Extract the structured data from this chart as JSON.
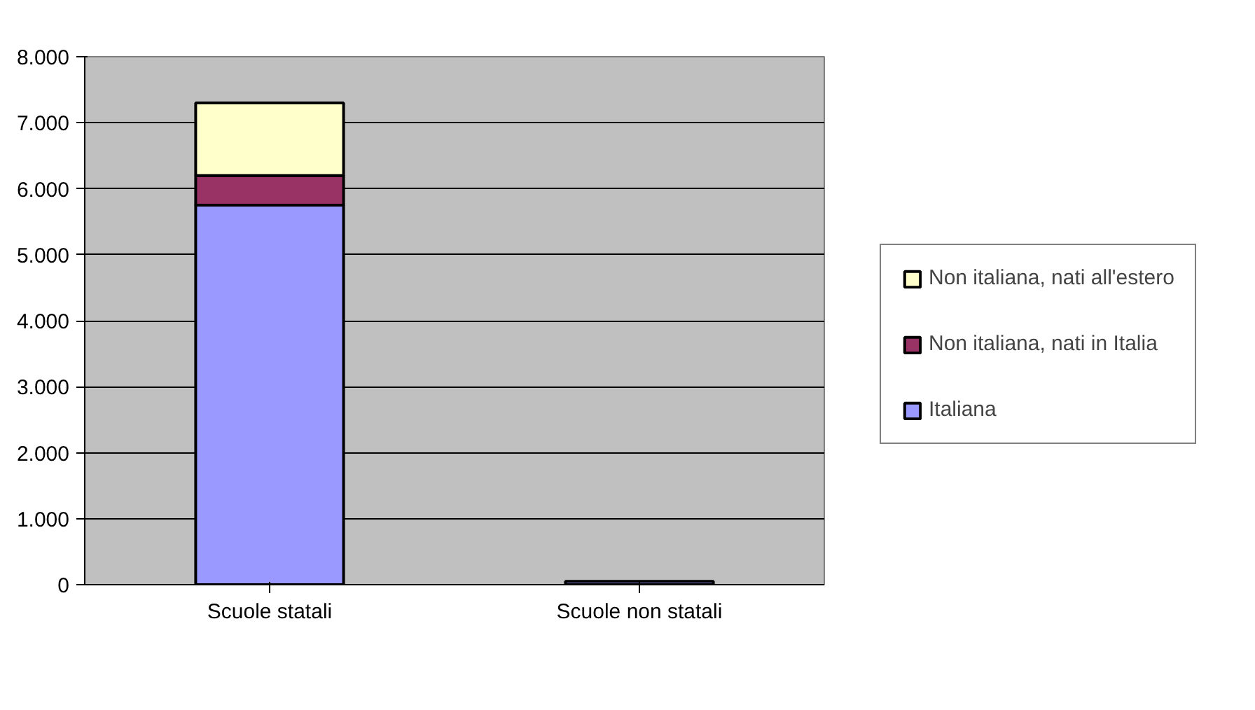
{
  "chart_data": {
    "type": "bar",
    "stacked": true,
    "categories": [
      "Scuole statali",
      "Scuole non statali"
    ],
    "series": [
      {
        "name": "Italiana",
        "color": "#9999ff",
        "values": [
          5750,
          50
        ]
      },
      {
        "name": "Non italiana, nati in Italia",
        "color": "#993366",
        "values": [
          450,
          null
        ]
      },
      {
        "name": "Non italiana, nati all'estero",
        "color": "#ffffcc",
        "values": [
          1100,
          null
        ]
      }
    ],
    "ylim": [
      0,
      8000
    ],
    "yticks": [
      {
        "value": 0,
        "label": "0"
      },
      {
        "value": 1000,
        "label": "1.000"
      },
      {
        "value": 2000,
        "label": "2.000"
      },
      {
        "value": 3000,
        "label": "3.000"
      },
      {
        "value": 4000,
        "label": "4.000"
      },
      {
        "value": 5000,
        "label": "5.000"
      },
      {
        "value": 6000,
        "label": "6.000"
      },
      {
        "value": 7000,
        "label": "7.000"
      },
      {
        "value": 8000,
        "label": "8.000"
      }
    ],
    "grid": "y",
    "legend": "right"
  }
}
